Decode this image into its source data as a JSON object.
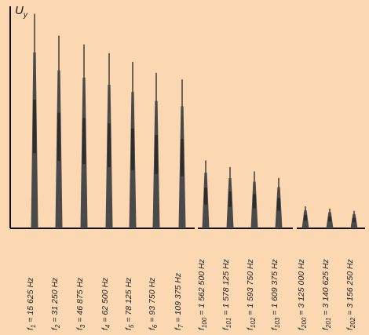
{
  "chart_data": {
    "type": "bar",
    "ylabel": "U",
    "ylabel_subscript": "y",
    "xlabel": "",
    "title": "",
    "grid": false,
    "ylim": [
      0,
      100
    ],
    "categories": [
      {
        "sym": "f",
        "sub": "1",
        "freq": "15 625 Hz"
      },
      {
        "sym": "f",
        "sub": "2",
        "freq": "31 250 Hz"
      },
      {
        "sym": "f",
        "sub": "3",
        "freq": "46 875 Hz"
      },
      {
        "sym": "f",
        "sub": "4",
        "freq": "62 500 Hz"
      },
      {
        "sym": "f",
        "sub": "5",
        "freq": "78 125 Hz"
      },
      {
        "sym": "f",
        "sub": "6",
        "freq": "93 750 Hz"
      },
      {
        "sym": "f",
        "sub": "7",
        "freq": "109 375 Hz"
      },
      {
        "sym": "f",
        "sub": "100",
        "freq": "1 562 500 Hz"
      },
      {
        "sym": "f",
        "sub": "101",
        "freq": "1 578 125 Hz"
      },
      {
        "sym": "f",
        "sub": "102",
        "freq": "1 593 750 Hz"
      },
      {
        "sym": "f",
        "sub": "103",
        "freq": "1 609 375 Hz"
      },
      {
        "sym": "f",
        "sub": "200",
        "freq": "3 125 000 Hz"
      },
      {
        "sym": "f",
        "sub": "201",
        "freq": "3 140 625 Hz"
      },
      {
        "sym": "f",
        "sub": "202",
        "freq": "3 156 250 Hz"
      }
    ],
    "values": [
      98,
      88,
      84,
      80,
      76,
      71,
      68,
      31,
      28,
      26,
      23,
      10,
      9,
      8
    ],
    "groups": [
      [
        0,
        6
      ],
      [
        7,
        10
      ],
      [
        11,
        13
      ]
    ],
    "colors": {
      "background": "#fbd7b2",
      "axis": "#111111",
      "bar": "#4a4a4a",
      "bar_core": "#262626"
    }
  }
}
